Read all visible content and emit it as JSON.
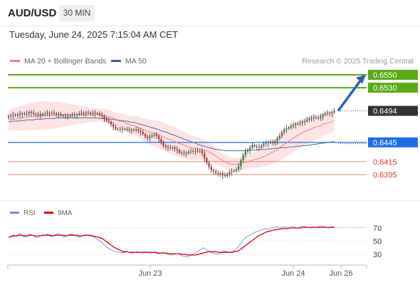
{
  "header": {
    "symbol": "AUD/USD",
    "timeframe": "30 MIN"
  },
  "datetime": "Tuesday, June 24, 2025 7:15:04 AM CET",
  "legend": {
    "bollinger": "MA 20 + Bollinger Bands",
    "ma50": "MA 50",
    "credit": "Research © 2025 Trading Central"
  },
  "colors": {
    "target": "#5aaa1a",
    "pivot": "#1e6ee6",
    "support": "#f08080",
    "last": "#333333",
    "ma20": "#f08080",
    "ma50": "#4a6fa5",
    "band": "#fde3e3",
    "up": "#2e7d32",
    "down": "#c62828",
    "rsi": "#6f8fe0",
    "rsi_ma": "#e00000",
    "arrow": "#2a64b0"
  },
  "chart_data": [
    {
      "type": "line",
      "title": "AUD/USD 30 MIN",
      "ylim": [
        0.638,
        0.656
      ],
      "x_labels": [
        "Jun 23",
        "Jun 24",
        "Jun 26"
      ],
      "levels": [
        {
          "value": 0.655,
          "label": "0.6550",
          "kind": "target"
        },
        {
          "value": 0.653,
          "label": "0.6530",
          "kind": "target"
        },
        {
          "value": 0.6494,
          "label": "0.6494",
          "kind": "last"
        },
        {
          "value": 0.6445,
          "label": "0.6445",
          "kind": "pivot"
        },
        {
          "value": 0.6415,
          "label": "0.6415",
          "kind": "support"
        },
        {
          "value": 0.6395,
          "label": "0.6395",
          "kind": "support"
        }
      ],
      "close": [
        0.6486,
        0.6487,
        0.6488,
        0.6487,
        0.6488,
        0.649,
        0.6489,
        0.6489,
        0.649,
        0.6492,
        0.6491,
        0.6489,
        0.6488,
        0.6489,
        0.6487,
        0.6489,
        0.649,
        0.6491,
        0.649,
        0.6491,
        0.649,
        0.6489,
        0.6488,
        0.6487,
        0.6487,
        0.6486,
        0.6486,
        0.6487,
        0.6488,
        0.6487,
        0.6488,
        0.649,
        0.6491,
        0.649,
        0.6491,
        0.6491,
        0.649,
        0.6491,
        0.649,
        0.649,
        0.6488,
        0.6486,
        0.6482,
        0.6479,
        0.6477,
        0.6473,
        0.6469,
        0.6466,
        0.6466,
        0.6465,
        0.6466,
        0.6466,
        0.6465,
        0.6465,
        0.6464,
        0.6464,
        0.6465,
        0.6463,
        0.6461,
        0.6458,
        0.6454,
        0.6452,
        0.6454,
        0.6456,
        0.6457,
        0.6455,
        0.645,
        0.6444,
        0.644,
        0.6438,
        0.6437,
        0.6436,
        0.6437,
        0.6435,
        0.6433,
        0.6429,
        0.6428,
        0.6429,
        0.6428,
        0.643,
        0.6431,
        0.6432,
        0.6431,
        0.6432,
        0.6432,
        0.6428,
        0.642,
        0.6413,
        0.6407,
        0.6402,
        0.64,
        0.6397,
        0.6396,
        0.6397,
        0.6394,
        0.6393,
        0.6396,
        0.6399,
        0.64,
        0.6401,
        0.6403,
        0.6408,
        0.6417,
        0.6425,
        0.6431,
        0.6433,
        0.6437,
        0.6441,
        0.6439,
        0.6438,
        0.6437,
        0.644,
        0.6443,
        0.6444,
        0.6446,
        0.6445,
        0.6444,
        0.6447,
        0.6451,
        0.6455,
        0.6461,
        0.6465,
        0.6467,
        0.6468,
        0.6471,
        0.6472,
        0.6474,
        0.6474,
        0.6475,
        0.6477,
        0.6478,
        0.648,
        0.6482,
        0.6483,
        0.6484,
        0.6483,
        0.6483,
        0.6485,
        0.6488,
        0.649,
        0.6491,
        0.649,
        0.6492,
        0.6494
      ],
      "ma20": [
        0.648,
        0.648,
        0.6481,
        0.6481,
        0.6482,
        0.6482,
        0.6483,
        0.6484,
        0.6484,
        0.6485,
        0.6485,
        0.6485,
        0.6486,
        0.6486,
        0.6486,
        0.6487,
        0.6487,
        0.6487,
        0.6487,
        0.6487,
        0.6487,
        0.6488,
        0.6488,
        0.6488,
        0.6488,
        0.6488,
        0.6488,
        0.6488,
        0.6488,
        0.6488,
        0.6488,
        0.6488,
        0.6488,
        0.6488,
        0.6488,
        0.6488,
        0.6488,
        0.6488,
        0.6488,
        0.6488,
        0.6488,
        0.6487,
        0.6487,
        0.6486,
        0.6485,
        0.6484,
        0.6482,
        0.6481,
        0.6479,
        0.6478,
        0.6477,
        0.6476,
        0.6474,
        0.6473,
        0.6472,
        0.6471,
        0.647,
        0.6468,
        0.6467,
        0.6465,
        0.6464,
        0.6462,
        0.6461,
        0.646,
        0.6459,
        0.6458,
        0.6457,
        0.6455,
        0.6454,
        0.6452,
        0.645,
        0.6449,
        0.6448,
        0.6446,
        0.6445,
        0.6443,
        0.6442,
        0.6441,
        0.6439,
        0.6438,
        0.6437,
        0.6436,
        0.6436,
        0.6435,
        0.6435,
        0.6434,
        0.6433,
        0.6432,
        0.643,
        0.6428,
        0.6426,
        0.6424,
        0.6421,
        0.6419,
        0.6417,
        0.6415,
        0.6413,
        0.6412,
        0.6411,
        0.6411,
        0.6411,
        0.6411,
        0.6412,
        0.6413,
        0.6414,
        0.6415,
        0.6416,
        0.6417,
        0.6418,
        0.6419,
        0.642,
        0.6421,
        0.6423,
        0.6424,
        0.6426,
        0.6428,
        0.643,
        0.6432,
        0.6434,
        0.6437,
        0.6439,
        0.6442,
        0.6444,
        0.6447,
        0.6449,
        0.6452,
        0.6454,
        0.6456,
        0.6458,
        0.646,
        0.6462,
        0.6463,
        0.6465,
        0.6466,
        0.6468,
        0.6469,
        0.647,
        0.6471,
        0.6473,
        0.6474,
        0.6475,
        0.6476,
        0.6477,
        0.6479
      ],
      "ma50": [
        0.6477,
        0.6477,
        0.6478,
        0.6478,
        0.6478,
        0.6479,
        0.6479,
        0.6479,
        0.648,
        0.648,
        0.648,
        0.648,
        0.6481,
        0.6481,
        0.6481,
        0.6481,
        0.6482,
        0.6482,
        0.6482,
        0.6482,
        0.6482,
        0.6483,
        0.6483,
        0.6483,
        0.6483,
        0.6483,
        0.6483,
        0.6483,
        0.6483,
        0.6483,
        0.6483,
        0.6483,
        0.6483,
        0.6483,
        0.6483,
        0.6483,
        0.6483,
        0.6483,
        0.6483,
        0.6483,
        0.6482,
        0.6482,
        0.6482,
        0.6482,
        0.6481,
        0.6481,
        0.6481,
        0.648,
        0.648,
        0.6479,
        0.6479,
        0.6478,
        0.6478,
        0.6477,
        0.6476,
        0.6476,
        0.6475,
        0.6474,
        0.6473,
        0.6472,
        0.6471,
        0.647,
        0.6469,
        0.6468,
        0.6467,
        0.6466,
        0.6465,
        0.6463,
        0.6462,
        0.6461,
        0.646,
        0.6458,
        0.6457,
        0.6456,
        0.6454,
        0.6453,
        0.6452,
        0.645,
        0.6449,
        0.6448,
        0.6446,
        0.6445,
        0.6444,
        0.6442,
        0.6441,
        0.644,
        0.6439,
        0.6438,
        0.6437,
        0.6436,
        0.6435,
        0.6434,
        0.6434,
        0.6433,
        0.6433,
        0.6432,
        0.6432,
        0.6432,
        0.6432,
        0.6432,
        0.6432,
        0.6432,
        0.6432,
        0.6432,
        0.6432,
        0.6433,
        0.6433,
        0.6433,
        0.6433,
        0.6433,
        0.6434,
        0.6434,
        0.6434,
        0.6434,
        0.6435,
        0.6435,
        0.6435,
        0.6436,
        0.6436,
        0.6436,
        0.6437,
        0.6437,
        0.6437,
        0.6438,
        0.6438,
        0.6438,
        0.6439,
        0.6439,
        0.6439,
        0.644,
        0.644,
        0.644,
        0.6441,
        0.6441,
        0.6442,
        0.6442,
        0.6443,
        0.6443,
        0.6444,
        0.6444,
        0.6445,
        0.6445,
        0.6446,
        0.6446
      ],
      "bb_width": 0.001,
      "forecast": {
        "from": 0.6494,
        "to": 0.6548
      }
    },
    {
      "type": "line",
      "title": "RSI",
      "ylim": [
        20,
        80
      ],
      "y_ticks": [
        70,
        50,
        30
      ],
      "series": [
        {
          "name": "RSI",
          "values": [
            55,
            58,
            60,
            57,
            62,
            60,
            56,
            58,
            61,
            59,
            57,
            55,
            58,
            60,
            59,
            61,
            57,
            58,
            60,
            62,
            59,
            56,
            58,
            60,
            61,
            59,
            57,
            56,
            58,
            60,
            59,
            58,
            57,
            55,
            52,
            50,
            46,
            42,
            39,
            37,
            35,
            34,
            33,
            32,
            33,
            34,
            33,
            32,
            33,
            34,
            33,
            32,
            34,
            33,
            32,
            33,
            32,
            31,
            32,
            33,
            31,
            30,
            29,
            30,
            31,
            30,
            28,
            27,
            26,
            28,
            30,
            32,
            34,
            37,
            40,
            38,
            35,
            33,
            32,
            31,
            30,
            33,
            35,
            34,
            33,
            34,
            36,
            40,
            45,
            50,
            55,
            58,
            60,
            62,
            64,
            65,
            67,
            68,
            69,
            68,
            70,
            71,
            72,
            70,
            71,
            72,
            70,
            71,
            72,
            71,
            70,
            72,
            73,
            72,
            71,
            70,
            72,
            71,
            72,
            73,
            72,
            71,
            70,
            72,
            71
          ]
        },
        {
          "name": "9MA",
          "values": [
            56,
            57,
            58,
            58,
            59,
            59,
            58,
            58,
            59,
            59,
            58,
            58,
            58,
            59,
            59,
            59,
            59,
            58,
            59,
            59,
            59,
            59,
            58,
            59,
            59,
            59,
            59,
            58,
            58,
            59,
            59,
            59,
            58,
            57,
            56,
            55,
            53,
            50,
            47,
            44,
            41,
            39,
            37,
            35,
            34,
            34,
            33,
            33,
            33,
            33,
            33,
            33,
            33,
            33,
            33,
            33,
            33,
            32,
            32,
            32,
            32,
            31,
            31,
            31,
            31,
            31,
            30,
            30,
            29,
            29,
            29,
            29,
            30,
            31,
            32,
            33,
            34,
            34,
            34,
            34,
            33,
            33,
            33,
            33,
            33,
            33,
            34,
            35,
            37,
            40,
            43,
            46,
            49,
            52,
            55,
            58,
            60,
            62,
            64,
            65,
            66,
            67,
            68,
            68,
            69,
            69,
            69,
            70,
            70,
            70,
            70,
            70,
            71,
            71,
            71,
            71,
            71,
            71,
            71,
            71,
            71,
            71,
            71,
            71,
            71
          ]
        }
      ]
    }
  ]
}
